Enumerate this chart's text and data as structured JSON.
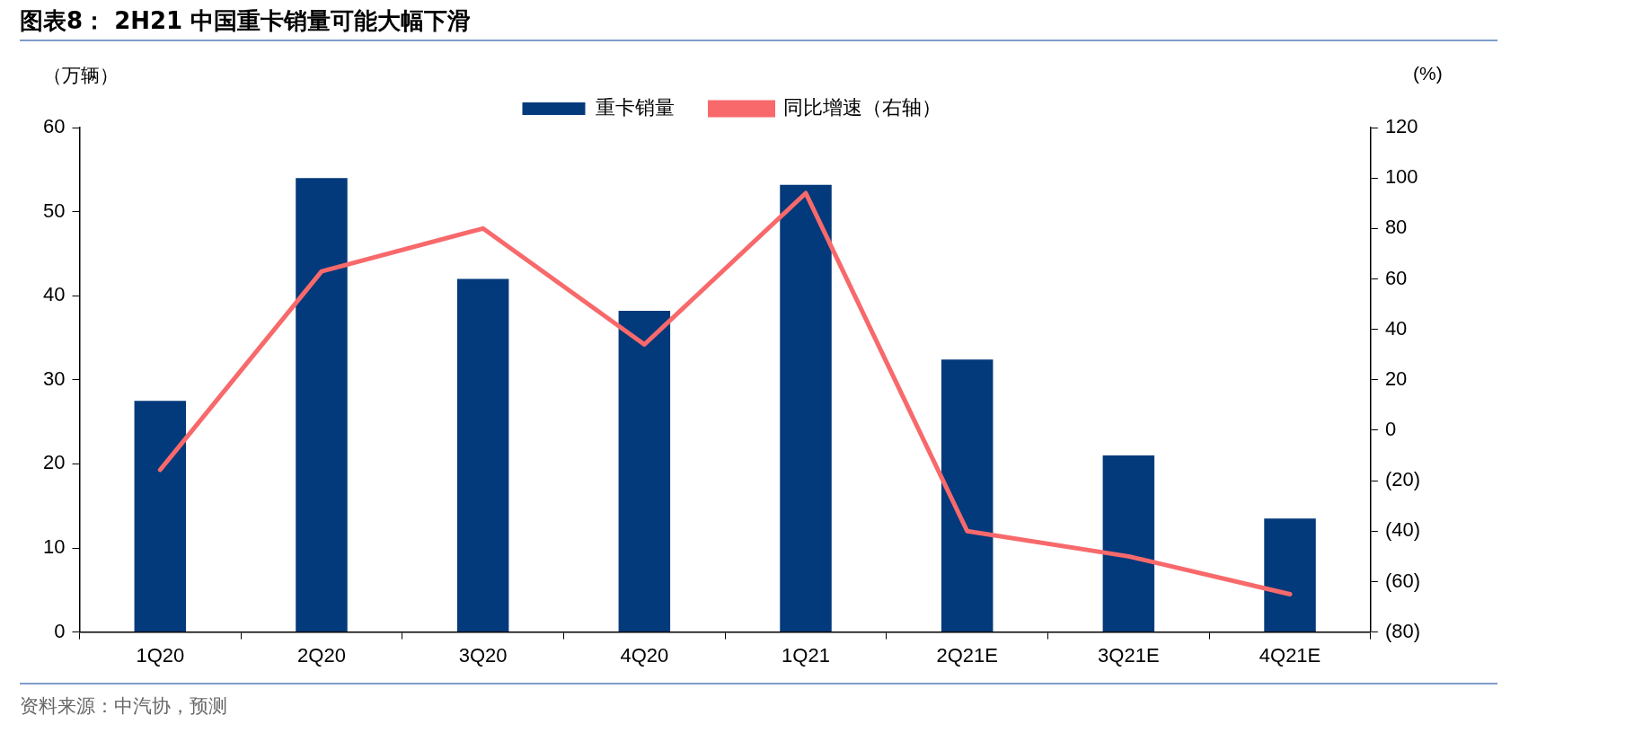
{
  "chart_data": {
    "type": "bar",
    "title": "图表8：  2H21 中国重卡销量可能大幅下滑",
    "ylabel": "（万辆）",
    "y2label": "(%)",
    "categories": [
      "1Q20",
      "2Q20",
      "3Q20",
      "4Q20",
      "1Q21",
      "2Q21E",
      "3Q21E",
      "4Q21E"
    ],
    "series": [
      {
        "name": "重卡销量",
        "color": "#023a7b",
        "values": [
          27.5,
          54.0,
          42.0,
          38.2,
          53.2,
          32.4,
          21.0,
          13.5
        ]
      },
      {
        "name": "同比增速（右轴）",
        "type": "line",
        "axis": "y2",
        "color": "#f8696b",
        "values": [
          -15.7,
          63,
          80,
          34,
          94,
          -40,
          -50,
          -65
        ]
      }
    ],
    "ylim": [
      0,
      60
    ],
    "yticks": [
      0,
      10,
      20,
      30,
      40,
      50,
      60
    ],
    "y2lim": [
      -80,
      120
    ],
    "y2ticks": [
      {
        "value": -80,
        "label": "(80)"
      },
      {
        "value": -60,
        "label": "(60)"
      },
      {
        "value": -40,
        "label": "(40)"
      },
      {
        "value": -20,
        "label": "(20)"
      },
      0,
      20,
      40,
      60,
      80,
      100,
      120
    ],
    "legend": "top",
    "marker": "none",
    "line_style": "solid",
    "annotations": [
      "资料来源：中汽协，预测"
    ]
  }
}
